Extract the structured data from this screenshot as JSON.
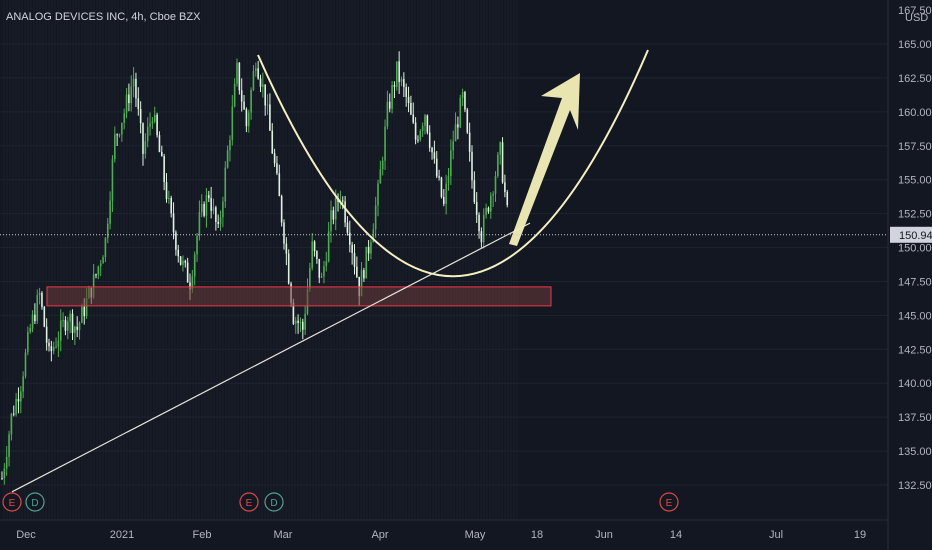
{
  "title": "ANALOG DEVICES INC, 4h, Cboe BZX",
  "currency": "USD",
  "last_price": "150.94",
  "colors": {
    "background": "#131722",
    "up": "#4caf50",
    "down": "#e0f2e0",
    "trendline": "#e8e6d9",
    "curve": "#f5f0c2",
    "arrow": "#f3f0b8",
    "zone_border": "#f23645",
    "zone_fill": "#6b3a3a",
    "axis_text": "#b2b5be",
    "earnings": "#d84a4a",
    "dividend": "#4fa38f"
  },
  "chart_data": {
    "type": "candlestick",
    "title": "ANALOG DEVICES INC, 4h, Cboe BZX",
    "ylim": [
      130.5,
      167.5
    ],
    "y_ticks": [
      "132.50",
      "135.00",
      "137.50",
      "140.00",
      "142.50",
      "145.00",
      "147.50",
      "150.00",
      "152.50",
      "155.00",
      "157.50",
      "160.00",
      "162.50",
      "165.00"
    ],
    "y_top_partial": "167.50",
    "x_ticks": [
      "Dec",
      "2021",
      "Feb",
      "Mar",
      "Apr",
      "May",
      "18",
      "Jun",
      "14",
      "Jul",
      "19"
    ],
    "last_price": 150.94,
    "price_path": [
      [
        0,
        133.0
      ],
      [
        4,
        137.5
      ],
      [
        8,
        140
      ],
      [
        12,
        144
      ],
      [
        16,
        146.5
      ],
      [
        20,
        142
      ],
      [
        24,
        143.5
      ],
      [
        28,
        145
      ],
      [
        32,
        144
      ],
      [
        36,
        146
      ],
      [
        40,
        148
      ],
      [
        44,
        150.5
      ],
      [
        48,
        158
      ],
      [
        52,
        160
      ],
      [
        56,
        162.5
      ],
      [
        60,
        157
      ],
      [
        64,
        160
      ],
      [
        68,
        156
      ],
      [
        72,
        152
      ],
      [
        76,
        149
      ],
      [
        80,
        147.5
      ],
      [
        84,
        152
      ],
      [
        88,
        154
      ],
      [
        92,
        151
      ],
      [
        96,
        157
      ],
      [
        100,
        163
      ],
      [
        104,
        159
      ],
      [
        108,
        164
      ],
      [
        112,
        161
      ],
      [
        116,
        156
      ],
      [
        120,
        151
      ],
      [
        124,
        145
      ],
      [
        128,
        144
      ],
      [
        132,
        150
      ],
      [
        136,
        147.5
      ],
      [
        140,
        152
      ],
      [
        144,
        154
      ],
      [
        148,
        151
      ],
      [
        152,
        147
      ],
      [
        156,
        150
      ],
      [
        160,
        154
      ],
      [
        164,
        160
      ],
      [
        168,
        163
      ],
      [
        172,
        161
      ],
      [
        176,
        158
      ],
      [
        180,
        160
      ],
      [
        184,
        156
      ],
      [
        188,
        153
      ],
      [
        192,
        158
      ],
      [
        196,
        161
      ],
      [
        200,
        155
      ],
      [
        204,
        151
      ],
      [
        208,
        154
      ],
      [
        212,
        157
      ],
      [
        216,
        150.94
      ]
    ],
    "support_zone": {
      "y_low": 145.7,
      "y_high": 147.1
    },
    "trendline": {
      "from": [
        132.0
      ],
      "to": [
        151.8
      ]
    },
    "events": [
      {
        "label": "E",
        "type": "earnings"
      },
      {
        "label": "D",
        "type": "dividend"
      },
      {
        "label": "E",
        "type": "earnings"
      },
      {
        "label": "D",
        "type": "dividend"
      },
      {
        "label": "E",
        "type": "earnings"
      }
    ]
  }
}
